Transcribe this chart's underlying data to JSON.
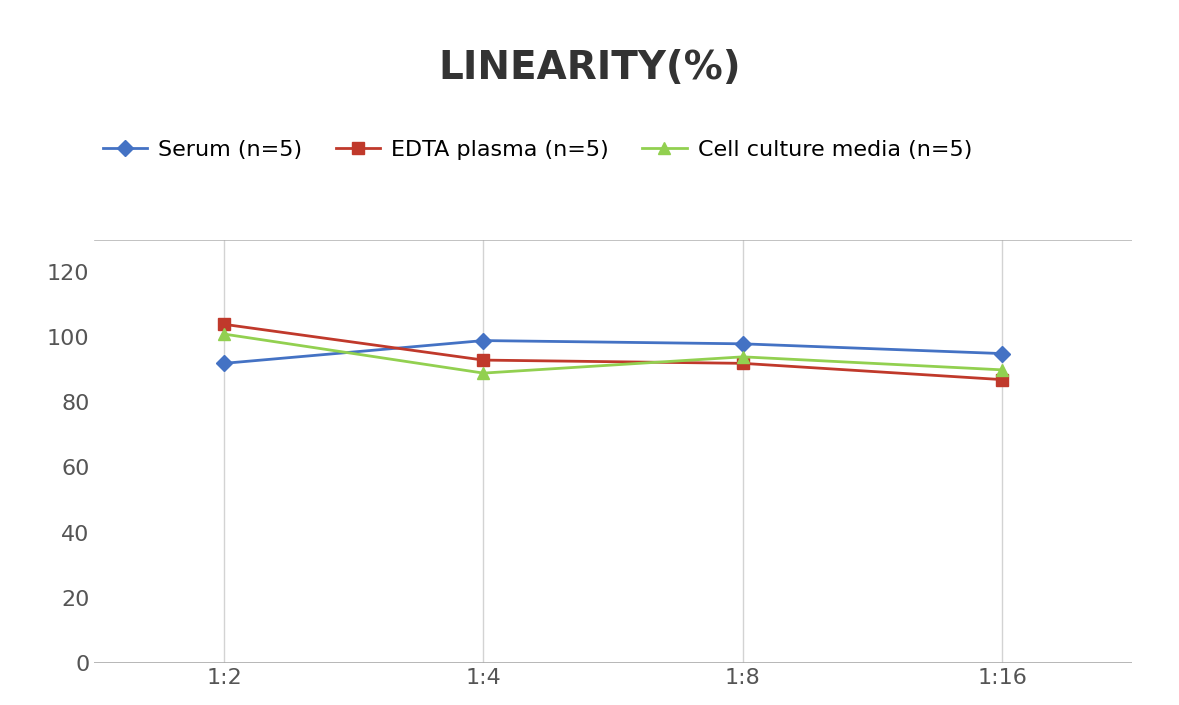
{
  "title": "LINEARITY(%)",
  "x_labels": [
    "1:2",
    "1:4",
    "1:8",
    "1:16"
  ],
  "x_positions": [
    0,
    1,
    2,
    3
  ],
  "series": [
    {
      "label": "Serum (n=5)",
      "values": [
        92,
        99,
        98,
        95
      ],
      "color": "#4472C4",
      "marker": "D",
      "marker_size": 8,
      "linewidth": 2
    },
    {
      "label": "EDTA plasma (n=5)",
      "values": [
        104,
        93,
        92,
        87
      ],
      "color": "#C0392B",
      "marker": "s",
      "marker_size": 8,
      "linewidth": 2
    },
    {
      "label": "Cell culture media (n=5)",
      "values": [
        101,
        89,
        94,
        90
      ],
      "color": "#92D050",
      "marker": "^",
      "marker_size": 8,
      "linewidth": 2
    }
  ],
  "ylim": [
    0,
    130
  ],
  "yticks": [
    0,
    20,
    40,
    60,
    80,
    100,
    120
  ],
  "background_color": "#FFFFFF",
  "grid_color": "#D3D3D3",
  "title_fontsize": 28,
  "tick_fontsize": 16,
  "legend_fontsize": 16
}
